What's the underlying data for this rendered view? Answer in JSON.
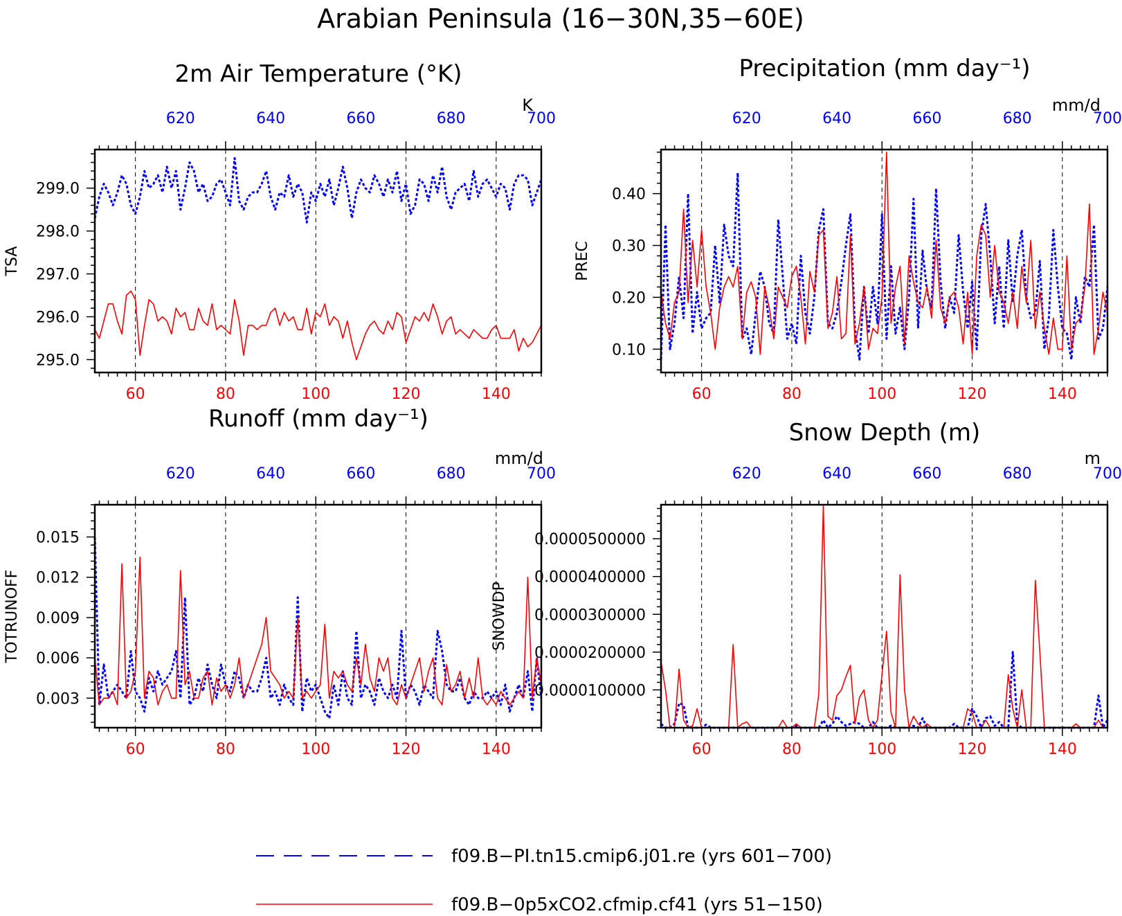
{
  "figure": {
    "title": "Arabian Peninsula (16−30N,35−60E)"
  },
  "colors": {
    "series_a": "#0000ff",
    "series_b": "#ff0000",
    "axis": "#000000"
  },
  "legend": {
    "items": [
      {
        "label": "f09.B−PI.tn15.cmip6.j01.re (yrs 601−700)",
        "color": "#0000ff",
        "style": "dashed"
      },
      {
        "label": "f09.B−0p5xCO2.cfmip.cf41 (yrs 51−150)",
        "color": "#ff0000",
        "style": "solid"
      }
    ]
  },
  "chart_data": [
    {
      "type": "line",
      "title": "2m Air Temperature (°K)",
      "ylabel": "TSA",
      "units": "K",
      "xlim_bottom": [
        51,
        150
      ],
      "xlim_top": [
        601,
        700
      ],
      "xticks_bottom": [
        "60",
        "80",
        "100",
        "120",
        "140"
      ],
      "xticks_top": [
        "620",
        "640",
        "660",
        "680",
        "700"
      ],
      "ylim": [
        294.7,
        299.9
      ],
      "yticks": [
        "295.0",
        "296.0",
        "297.0",
        "298.0",
        "299.0"
      ],
      "grid": "dashed vertical at x ticks",
      "series": [
        {
          "values": [
            298.3,
            298.8,
            299.1,
            298.9,
            298.6,
            298.9,
            299.3,
            299.1,
            298.6,
            298.4,
            298.8,
            299.4,
            299.0,
            299.1,
            299.3,
            298.9,
            299.5,
            299.0,
            299.4,
            298.5,
            299.0,
            299.6,
            299.4,
            298.9,
            299.1,
            298.7,
            298.8,
            299.1,
            299.2,
            298.9,
            298.6,
            299.7,
            298.7,
            298.5,
            298.8,
            298.9,
            298.9,
            299.1,
            299.4,
            298.8,
            298.5,
            298.9,
            298.8,
            299.3,
            298.8,
            299.1,
            298.9,
            298.2,
            298.9,
            298.7,
            299.1,
            298.8,
            299.2,
            298.6,
            299.0,
            299.5,
            299.0,
            298.3,
            298.9,
            299.2,
            299.0,
            298.9,
            299.3,
            299.1,
            298.8,
            299.2,
            298.9,
            299.4,
            298.7,
            299.1,
            298.4,
            298.6,
            299.2,
            299.1,
            298.7,
            299.3,
            298.9,
            299.5,
            298.8,
            298.5,
            298.9,
            299.0,
            299.1,
            298.7,
            299.4,
            298.8,
            299.1,
            299.2,
            299.0,
            298.8,
            299.1,
            299.0,
            298.5,
            299.1,
            299.3,
            299.3,
            299.2,
            298.6,
            298.9,
            299.2
          ]
        },
        {
          "values": [
            295.7,
            295.5,
            295.9,
            296.3,
            296.3,
            295.9,
            295.6,
            296.5,
            296.6,
            296.4,
            295.1,
            295.8,
            296.4,
            296.3,
            295.9,
            296.0,
            295.9,
            295.6,
            296.2,
            296.0,
            296.1,
            295.7,
            295.7,
            296.2,
            295.9,
            295.8,
            296.3,
            295.7,
            295.8,
            295.7,
            295.6,
            296.4,
            295.9,
            295.1,
            295.8,
            295.8,
            295.7,
            295.8,
            295.8,
            296.1,
            296.2,
            295.8,
            296.1,
            295.9,
            296.0,
            295.7,
            295.7,
            296.2,
            295.6,
            296.1,
            296.0,
            296.3,
            295.8,
            296.0,
            295.9,
            295.5,
            295.9,
            295.4,
            295.0,
            295.3,
            295.6,
            295.8,
            295.9,
            295.7,
            295.6,
            295.9,
            295.7,
            296.1,
            296.0,
            295.4,
            295.7,
            296.0,
            295.9,
            296.1,
            295.9,
            296.3,
            296.0,
            295.6,
            295.9,
            296.0,
            295.6,
            295.7,
            295.6,
            295.5,
            295.7,
            295.6,
            295.5,
            295.5,
            295.7,
            295.8,
            295.5,
            295.5,
            295.5,
            295.7,
            295.2,
            295.5,
            295.3,
            295.4,
            295.6,
            295.8
          ]
        }
      ]
    },
    {
      "type": "line",
      "title": "Precipitation (mm day⁻¹)",
      "ylabel": "PREC",
      "units": "mm/d",
      "xlim_bottom": [
        51,
        150
      ],
      "xlim_top": [
        601,
        700
      ],
      "xticks_bottom": [
        "60",
        "80",
        "100",
        "120",
        "140"
      ],
      "xticks_top": [
        "620",
        "640",
        "660",
        "680",
        "700"
      ],
      "ylim": [
        0.055,
        0.485
      ],
      "yticks": [
        "0.10",
        "0.20",
        "0.30",
        "0.40"
      ],
      "grid": "dashed vertical at x ticks",
      "series": [
        {
          "values": [
            0.08,
            0.34,
            0.1,
            0.15,
            0.24,
            0.16,
            0.4,
            0.13,
            0.21,
            0.14,
            0.16,
            0.17,
            0.3,
            0.19,
            0.34,
            0.28,
            0.26,
            0.44,
            0.12,
            0.14,
            0.09,
            0.17,
            0.25,
            0.22,
            0.15,
            0.13,
            0.35,
            0.24,
            0.12,
            0.15,
            0.11,
            0.28,
            0.17,
            0.13,
            0.2,
            0.33,
            0.37,
            0.15,
            0.14,
            0.17,
            0.23,
            0.3,
            0.36,
            0.14,
            0.08,
            0.22,
            0.13,
            0.22,
            0.15,
            0.36,
            0.12,
            0.26,
            0.13,
            0.18,
            0.1,
            0.2,
            0.39,
            0.14,
            0.29,
            0.21,
            0.18,
            0.41,
            0.23,
            0.14,
            0.2,
            0.17,
            0.32,
            0.21,
            0.14,
            0.23,
            0.1,
            0.32,
            0.38,
            0.28,
            0.15,
            0.26,
            0.14,
            0.31,
            0.19,
            0.28,
            0.33,
            0.2,
            0.16,
            0.17,
            0.27,
            0.1,
            0.16,
            0.33,
            0.22,
            0.14,
            0.13,
            0.08,
            0.2,
            0.15,
            0.24,
            0.22,
            0.34,
            0.12,
            0.14,
            0.22
          ]
        },
        {
          "values": [
            0.21,
            0.15,
            0.12,
            0.19,
            0.21,
            0.37,
            0.19,
            0.31,
            0.22,
            0.33,
            0.22,
            0.17,
            0.1,
            0.18,
            0.22,
            0.24,
            0.22,
            0.26,
            0.12,
            0.21,
            0.23,
            0.2,
            0.09,
            0.22,
            0.18,
            0.12,
            0.22,
            0.2,
            0.18,
            0.24,
            0.26,
            0.2,
            0.11,
            0.25,
            0.21,
            0.32,
            0.33,
            0.14,
            0.17,
            0.24,
            0.12,
            0.13,
            0.32,
            0.11,
            0.15,
            0.22,
            0.1,
            0.14,
            0.13,
            0.2,
            0.48,
            0.15,
            0.22,
            0.26,
            0.11,
            0.28,
            0.23,
            0.19,
            0.18,
            0.22,
            0.16,
            0.31,
            0.18,
            0.15,
            0.2,
            0.21,
            0.18,
            0.11,
            0.21,
            0.09,
            0.28,
            0.34,
            0.32,
            0.2,
            0.3,
            0.21,
            0.19,
            0.15,
            0.21,
            0.14,
            0.26,
            0.19,
            0.31,
            0.14,
            0.21,
            0.14,
            0.09,
            0.16,
            0.1,
            0.1,
            0.28,
            0.1,
            0.15,
            0.16,
            0.22,
            0.38,
            0.09,
            0.14,
            0.21,
            0.17
          ]
        }
      ]
    },
    {
      "type": "line",
      "title": "Runoff (mm day⁻¹)",
      "ylabel": "TOTRUNOFF",
      "units": "mm/d",
      "xlim_bottom": [
        51,
        150
      ],
      "xlim_top": [
        601,
        700
      ],
      "xticks_bottom": [
        "60",
        "80",
        "100",
        "120",
        "140"
      ],
      "xticks_top": [
        "620",
        "640",
        "660",
        "680",
        "700"
      ],
      "ylim": [
        0.0008,
        0.0174
      ],
      "yticks": [
        "0.003",
        "0.006",
        "0.009",
        "0.012",
        "0.015"
      ],
      "grid": "dashed vertical at x ticks",
      "series": [
        {
          "values": [
            0.015,
            0.0025,
            0.0055,
            0.003,
            0.0035,
            0.004,
            0.0035,
            0.003,
            0.0065,
            0.0035,
            0.003,
            0.002,
            0.0045,
            0.0035,
            0.005,
            0.004,
            0.0045,
            0.005,
            0.0065,
            0.003,
            0.0105,
            0.0025,
            0.003,
            0.0045,
            0.0035,
            0.0055,
            0.004,
            0.003,
            0.0055,
            0.004,
            0.0035,
            0.005,
            0.0045,
            0.003,
            0.004,
            0.0035,
            0.0035,
            0.0045,
            0.006,
            0.003,
            0.0035,
            0.0025,
            0.004,
            0.003,
            0.0025,
            0.0105,
            0.002,
            0.0045,
            0.0035,
            0.004,
            0.003,
            0.002,
            0.0015,
            0.004,
            0.0025,
            0.005,
            0.003,
            0.0025,
            0.008,
            0.003,
            0.004,
            0.0035,
            0.0025,
            0.0045,
            0.0035,
            0.003,
            0.004,
            0.003,
            0.008,
            0.003,
            0.004,
            0.0035,
            0.0025,
            0.004,
            0.0035,
            0.003,
            0.008,
            0.0065,
            0.004,
            0.0035,
            0.0035,
            0.0045,
            0.003,
            0.0025,
            0.0035,
            0.003,
            0.003,
            0.0035,
            0.003,
            0.0035,
            0.0025,
            0.004,
            0.002,
            0.003,
            0.004,
            0.003,
            0.005,
            0.002,
            0.006,
            0.003
          ]
        },
        {
          "values": [
            0.006,
            0.0025,
            0.003,
            0.003,
            0.0035,
            0.0025,
            0.013,
            0.003,
            0.0035,
            0.005,
            0.0135,
            0.003,
            0.005,
            0.0045,
            0.0025,
            0.0035,
            0.004,
            0.003,
            0.003,
            0.0125,
            0.004,
            0.005,
            0.003,
            0.003,
            0.0045,
            0.005,
            0.0025,
            0.0045,
            0.0035,
            0.004,
            0.003,
            0.004,
            0.006,
            0.003,
            0.004,
            0.005,
            0.006,
            0.007,
            0.009,
            0.005,
            0.0045,
            0.004,
            0.003,
            0.0035,
            0.003,
            0.009,
            0.003,
            0.0035,
            0.003,
            0.0035,
            0.004,
            0.0085,
            0.003,
            0.005,
            0.0045,
            0.005,
            0.004,
            0.0035,
            0.006,
            0.004,
            0.007,
            0.0045,
            0.0035,
            0.006,
            0.005,
            0.006,
            0.003,
            0.0025,
            0.004,
            0.003,
            0.004,
            0.005,
            0.006,
            0.0035,
            0.005,
            0.006,
            0.003,
            0.0025,
            0.0055,
            0.0035,
            0.004,
            0.005,
            0.003,
            0.0045,
            0.003,
            0.006,
            0.003,
            0.0025,
            0.003,
            0.0025,
            0.0035,
            0.003,
            0.0025,
            0.003,
            0.0035,
            0.003,
            0.012,
            0.003,
            0.006,
            0.004
          ]
        }
      ]
    },
    {
      "type": "line",
      "title": "Snow Depth (m)",
      "ylabel": "SNOWDP",
      "units": "m",
      "xlim_bottom": [
        51,
        150
      ],
      "xlim_top": [
        601,
        700
      ],
      "xticks_bottom": [
        "60",
        "80",
        "100",
        "120",
        "140"
      ],
      "xticks_top": [
        "620",
        "640",
        "660",
        "680",
        "700"
      ],
      "ylim": [
        0,
        5.9e-05
      ],
      "yticks": [
        "0.0000100000",
        "0.0000200000",
        "0.0000300000",
        "0.0000400000",
        "0.0000500000"
      ],
      "grid": "dashed vertical at x ticks",
      "series": [
        {
          "values": [
            1e-06,
            0,
            0,
            1e-06,
            6.5e-06,
            6e-06,
            0,
            0,
            0,
            0,
            8e-07,
            0,
            0,
            0,
            0,
            0,
            0,
            0,
            0,
            0,
            0,
            0,
            0,
            0,
            0,
            0,
            0,
            0,
            0,
            0,
            5e-07,
            0,
            0,
            0,
            0,
            0,
            2e-06,
            0,
            1e-06,
            3e-06,
            1.5e-06,
            5e-07,
            1e-06,
            1.5e-06,
            1e-06,
            0,
            0,
            1.5e-06,
            0,
            0,
            0,
            5e-07,
            0,
            0,
            0,
            0,
            5e-07,
            0,
            2.5e-06,
            0,
            0,
            0,
            0,
            0,
            0,
            1e-06,
            0,
            0,
            0,
            5e-06,
            3e-06,
            0,
            2.5e-06,
            3e-06,
            5e-07,
            1.5e-06,
            0,
            0,
            2e-05,
            1e-06,
            0,
            0,
            0,
            0,
            0,
            0,
            0,
            0,
            0,
            0,
            0,
            0,
            0,
            0,
            0,
            0,
            0,
            8.5e-06,
            0,
            2e-06
          ]
        },
        {
          "values": [
            1.75e-05,
            1e-05,
            0,
            0,
            1.55e-05,
            2e-06,
            0,
            5e-07,
            5e-06,
            0,
            0,
            0,
            0,
            0,
            0,
            0,
            2.2e-05,
            0,
            1e-06,
            1.5e-06,
            0,
            0,
            0,
            0,
            0,
            0,
            0,
            2e-06,
            0,
            0,
            1e-06,
            0,
            0,
            0,
            0,
            9e-06,
            5.9e-05,
            3e-06,
            2e-06,
            8.5e-06,
            1e-05,
            1.35e-05,
            1.65e-05,
            1e-06,
            8e-06,
            1e-05,
            2e-06,
            0,
            2e-06,
            1.4e-05,
            2.55e-05,
            4e-06,
            0,
            4.05e-05,
            1e-05,
            0,
            3e-06,
            1e-06,
            0,
            1e-06,
            0,
            0,
            0,
            0,
            0,
            0,
            0,
            0,
            5e-06,
            4e-06,
            0,
            0,
            2e-06,
            0,
            0,
            0,
            0,
            1.4e-05,
            5e-06,
            0,
            1e-05,
            0,
            0,
            3.9e-05,
            2e-05,
            0,
            0,
            0,
            0,
            0,
            0,
            0,
            1e-06,
            0,
            0,
            0,
            0,
            2e-06,
            0,
            0
          ]
        }
      ]
    }
  ]
}
